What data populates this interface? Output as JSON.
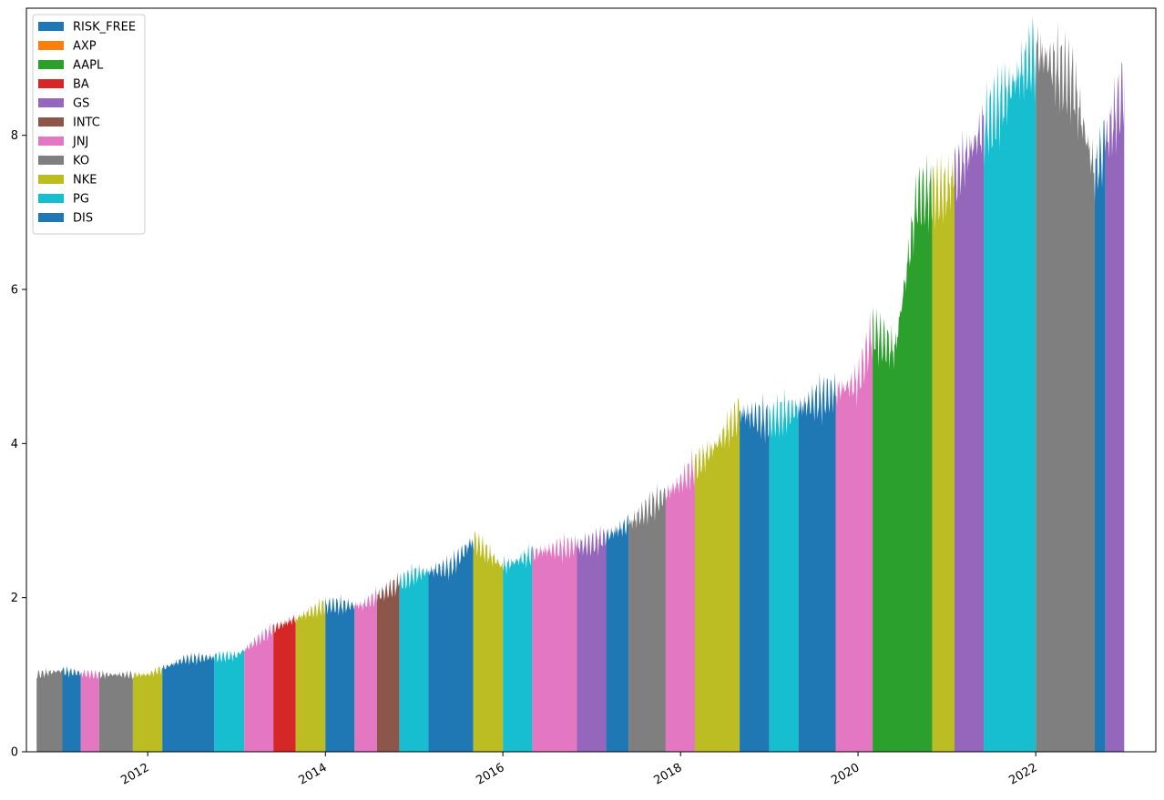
{
  "chart_data": {
    "type": "area",
    "title": "",
    "xlabel": "",
    "ylabel": "",
    "xlim": [
      "2010-08-20",
      "2023-05-10"
    ],
    "ylim": [
      0,
      9.65
    ],
    "x_ticks": [
      {
        "date": "2012-01-01",
        "label": "2012"
      },
      {
        "date": "2014-01-01",
        "label": "2014"
      },
      {
        "date": "2016-01-01",
        "label": "2016"
      },
      {
        "date": "2018-01-01",
        "label": "2018"
      },
      {
        "date": "2020-01-01",
        "label": "2020"
      },
      {
        "date": "2022-01-01",
        "label": "2022"
      }
    ],
    "y_ticks": [
      0,
      2,
      4,
      6,
      8
    ],
    "grid": false,
    "legend_position": "upper-left",
    "series": [
      {
        "name": "RISK_FREE",
        "color": "#1f77b4"
      },
      {
        "name": "AXP",
        "color": "#ff7f0e"
      },
      {
        "name": "AAPL",
        "color": "#2ca02c"
      },
      {
        "name": "BA",
        "color": "#d62728"
      },
      {
        "name": "GS",
        "color": "#9467bd"
      },
      {
        "name": "INTC",
        "color": "#8c564b"
      },
      {
        "name": "JNJ",
        "color": "#e377c2"
      },
      {
        "name": "KO",
        "color": "#7f7f7f"
      },
      {
        "name": "NKE",
        "color": "#bcbd22"
      },
      {
        "name": "PG",
        "color": "#17becf"
      },
      {
        "name": "DIS",
        "color": "#1f77b4"
      }
    ],
    "portfolio_value": {
      "dates": [
        "2010-10-01",
        "2011-01-01",
        "2011-06-01",
        "2012-01-01",
        "2012-06-01",
        "2013-01-01",
        "2013-06-01",
        "2014-01-01",
        "2014-06-01",
        "2015-01-01",
        "2015-06-01",
        "2015-09-01",
        "2016-01-01",
        "2016-06-01",
        "2017-01-01",
        "2017-06-01",
        "2018-01-01",
        "2018-06-01",
        "2018-09-01",
        "2019-01-01",
        "2019-06-01",
        "2020-01-01",
        "2020-03-01",
        "2020-06-01",
        "2020-09-01",
        "2021-01-01",
        "2021-06-01",
        "2022-01-01",
        "2022-06-01",
        "2022-09-01",
        "2022-12-31"
      ],
      "values": [
        1.0,
        1.05,
        1.0,
        1.0,
        1.2,
        1.25,
        1.6,
        1.9,
        1.9,
        2.3,
        2.4,
        2.75,
        2.4,
        2.6,
        2.7,
        2.95,
        3.5,
        4.0,
        4.4,
        4.3,
        4.5,
        4.8,
        5.45,
        5.2,
        7.2,
        7.3,
        8.1,
        9.1,
        8.7,
        7.5,
        8.6
      ]
    },
    "dominant_holdings": [
      {
        "start": "2010-10-01",
        "end": "2011-01-15",
        "name": "KO"
      },
      {
        "start": "2011-01-15",
        "end": "2011-04-01",
        "name": "DIS"
      },
      {
        "start": "2011-04-01",
        "end": "2011-06-15",
        "name": "JNJ"
      },
      {
        "start": "2011-06-15",
        "end": "2011-11-01",
        "name": "KO"
      },
      {
        "start": "2011-11-01",
        "end": "2012-03-01",
        "name": "NKE"
      },
      {
        "start": "2012-03-01",
        "end": "2012-10-01",
        "name": "DIS"
      },
      {
        "start": "2012-10-01",
        "end": "2013-02-01",
        "name": "PG"
      },
      {
        "start": "2013-02-01",
        "end": "2013-06-01",
        "name": "JNJ"
      },
      {
        "start": "2013-06-01",
        "end": "2013-09-01",
        "name": "BA"
      },
      {
        "start": "2013-09-01",
        "end": "2014-01-01",
        "name": "NKE"
      },
      {
        "start": "2014-01-01",
        "end": "2014-05-01",
        "name": "DIS"
      },
      {
        "start": "2014-05-01",
        "end": "2014-08-01",
        "name": "JNJ"
      },
      {
        "start": "2014-08-01",
        "end": "2014-11-01",
        "name": "INTC"
      },
      {
        "start": "2014-11-01",
        "end": "2015-03-01",
        "name": "PG"
      },
      {
        "start": "2015-03-01",
        "end": "2015-09-01",
        "name": "DIS"
      },
      {
        "start": "2015-09-01",
        "end": "2016-01-01",
        "name": "NKE"
      },
      {
        "start": "2016-01-01",
        "end": "2016-05-01",
        "name": "PG"
      },
      {
        "start": "2016-05-01",
        "end": "2016-11-01",
        "name": "JNJ"
      },
      {
        "start": "2016-11-01",
        "end": "2017-03-01",
        "name": "GS"
      },
      {
        "start": "2017-03-01",
        "end": "2017-06-01",
        "name": "DIS"
      },
      {
        "start": "2017-06-01",
        "end": "2017-11-01",
        "name": "KO"
      },
      {
        "start": "2017-11-01",
        "end": "2018-03-01",
        "name": "JNJ"
      },
      {
        "start": "2018-03-01",
        "end": "2018-09-01",
        "name": "NKE"
      },
      {
        "start": "2018-09-01",
        "end": "2019-01-01",
        "name": "DIS"
      },
      {
        "start": "2019-01-01",
        "end": "2019-05-01",
        "name": "PG"
      },
      {
        "start": "2019-05-01",
        "end": "2019-10-01",
        "name": "DIS"
      },
      {
        "start": "2019-10-01",
        "end": "2020-03-01",
        "name": "JNJ"
      },
      {
        "start": "2020-03-01",
        "end": "2020-11-01",
        "name": "AAPL"
      },
      {
        "start": "2020-11-01",
        "end": "2021-02-01",
        "name": "NKE"
      },
      {
        "start": "2021-02-01",
        "end": "2021-06-01",
        "name": "GS"
      },
      {
        "start": "2021-06-01",
        "end": "2022-01-01",
        "name": "PG"
      },
      {
        "start": "2022-01-01",
        "end": "2022-09-01",
        "name": "KO"
      },
      {
        "start": "2022-09-01",
        "end": "2022-10-15",
        "name": "DIS"
      },
      {
        "start": "2022-10-15",
        "end": "2022-12-31",
        "name": "GS"
      }
    ]
  }
}
